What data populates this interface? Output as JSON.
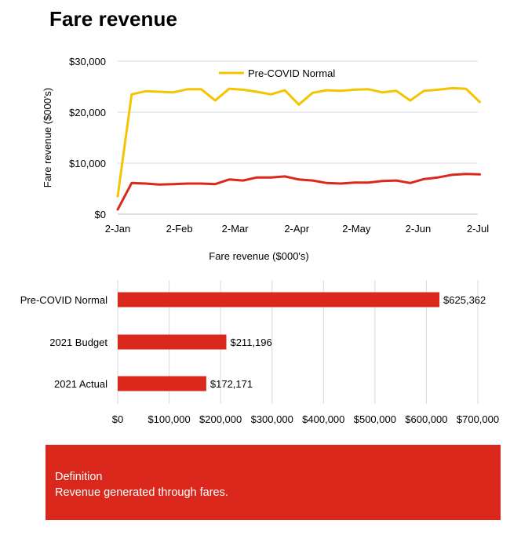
{
  "page_title": "Fare revenue",
  "colors": {
    "primary_red": "#da291c",
    "precovid_yellow": "#f5c400",
    "gridline": "#d9d9d9"
  },
  "chart_data": [
    {
      "type": "line",
      "title": "",
      "xlabel": "Fare revenue ($000's)",
      "ylabel": "Fare revenue ($000's)",
      "ylim": [
        0,
        30000
      ],
      "y_ticks": [
        0,
        10000,
        20000,
        30000
      ],
      "y_tick_labels": [
        "$0",
        "$10,000",
        "$20,000",
        "$30,000"
      ],
      "x_ticks": [
        "2021-01-02",
        "2021-02-02",
        "2021-03-02",
        "2021-04-02",
        "2021-05-02",
        "2021-06-02",
        "2021-07-02"
      ],
      "x_tick_labels": [
        "2-Jan",
        "2-Feb",
        "2-Mar",
        "2-Apr",
        "2-May",
        "2-Jun",
        "2-Jul"
      ],
      "xlim": [
        "2021-01-02",
        "2021-07-02"
      ],
      "legend": "top-center",
      "grid": true,
      "series": [
        {
          "name": "Pre-COVID Normal",
          "color": "#f5c400",
          "x": [
            "2021-01-02",
            "2021-01-09",
            "2021-01-16",
            "2021-01-23",
            "2021-01-30",
            "2021-02-06",
            "2021-02-13",
            "2021-02-20",
            "2021-02-27",
            "2021-03-06",
            "2021-03-13",
            "2021-03-20",
            "2021-03-27",
            "2021-04-03",
            "2021-04-10",
            "2021-04-17",
            "2021-04-24",
            "2021-05-01",
            "2021-05-08",
            "2021-05-15",
            "2021-05-22",
            "2021-05-29",
            "2021-06-05",
            "2021-06-12",
            "2021-06-19",
            "2021-06-26",
            "2021-07-03"
          ],
          "values": [
            3500,
            23500,
            24100,
            24000,
            23900,
            24500,
            24500,
            22300,
            24600,
            24400,
            24000,
            23500,
            24300,
            21500,
            23800,
            24300,
            24200,
            24400,
            24500,
            23900,
            24200,
            22300,
            24200,
            24400,
            24700,
            24600,
            22000
          ]
        },
        {
          "name": "",
          "color": "#da291c",
          "x": [
            "2021-01-02",
            "2021-01-09",
            "2021-01-16",
            "2021-01-23",
            "2021-01-30",
            "2021-02-06",
            "2021-02-13",
            "2021-02-20",
            "2021-02-27",
            "2021-03-06",
            "2021-03-13",
            "2021-03-20",
            "2021-03-27",
            "2021-04-03",
            "2021-04-10",
            "2021-04-17",
            "2021-04-24",
            "2021-05-01",
            "2021-05-08",
            "2021-05-15",
            "2021-05-22",
            "2021-05-29",
            "2021-06-05",
            "2021-06-12",
            "2021-06-19",
            "2021-06-26",
            "2021-07-03"
          ],
          "values": [
            900,
            6100,
            6000,
            5800,
            5900,
            6000,
            6000,
            5900,
            6800,
            6600,
            7200,
            7200,
            7400,
            6800,
            6600,
            6100,
            6000,
            6200,
            6200,
            6500,
            6600,
            6100,
            6900,
            7200,
            7700,
            7900,
            7800
          ]
        }
      ]
    },
    {
      "type": "bar",
      "orientation": "horizontal",
      "categories": [
        "Pre-COVID Normal",
        "2021 Budget",
        "2021 Actual"
      ],
      "values": [
        625362,
        211196,
        172171
      ],
      "data_labels": [
        "$625,362",
        "$211,196",
        "$172,171"
      ],
      "xlim": [
        0,
        700000
      ],
      "x_ticks": [
        0,
        100000,
        200000,
        300000,
        400000,
        500000,
        600000,
        700000
      ],
      "x_tick_labels": [
        "$0",
        "$100,000",
        "$200,000",
        "$300,000",
        "$400,000",
        "$500,000",
        "$600,000",
        "$700,000"
      ],
      "bar_color": "#da291c",
      "grid": true
    }
  ],
  "definition": {
    "heading": "Definition",
    "text": "Revenue generated through fares."
  }
}
